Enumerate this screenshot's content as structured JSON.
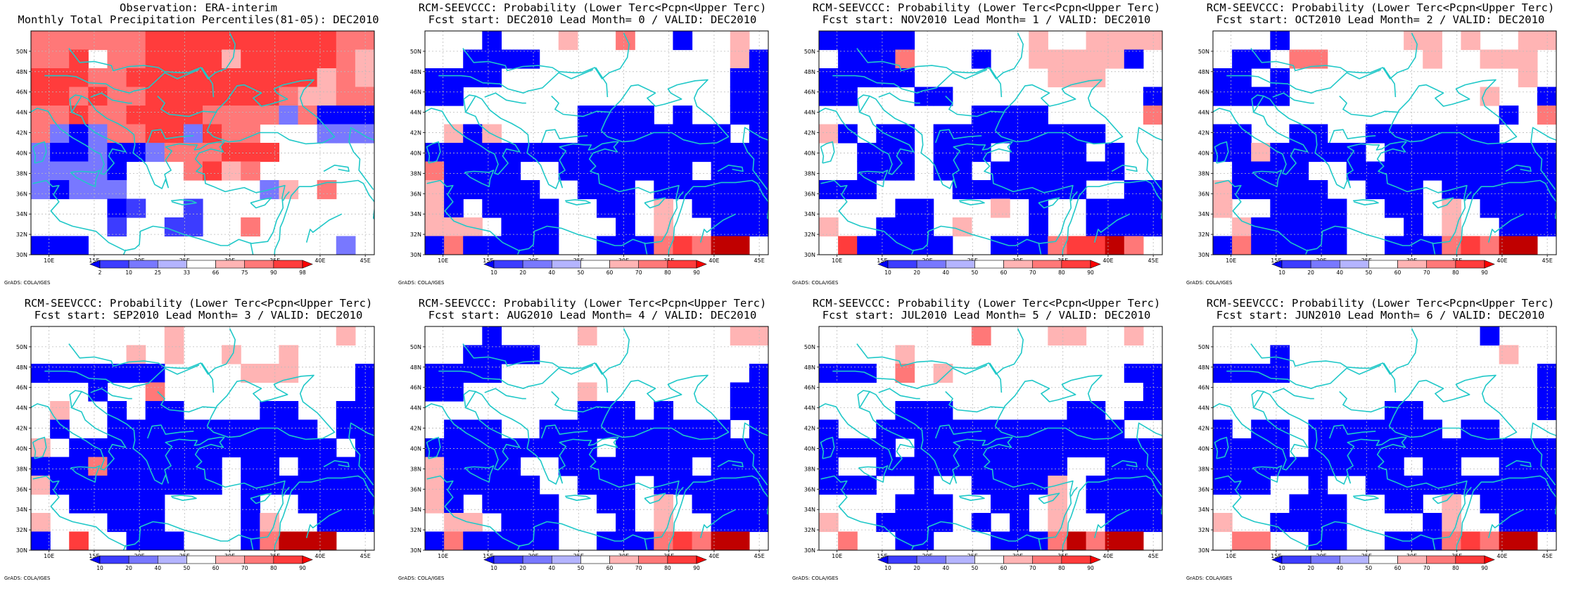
{
  "colors": {
    "blue1": "#0000ff",
    "blue2": "#3c3cff",
    "blue3": "#7878ff",
    "blue4": "#b4b4ff",
    "white": "#ffffff",
    "red1": "#ffb4b4",
    "red2": "#ff7878",
    "red3": "#ff3c3c",
    "red4": "#ff0000",
    "red5": "#c00000",
    "coast": "#20c8c8",
    "grid": "#bbbbbb"
  },
  "map": {
    "lon_range": [
      8,
      46
    ],
    "lat_range": [
      30,
      52
    ],
    "lon_ticks": [
      "10E",
      "15E",
      "20E",
      "25E",
      "30E",
      "35E",
      "40E",
      "45E"
    ],
    "lat_ticks": [
      "30N",
      "32N",
      "34N",
      "36N",
      "38N",
      "40N",
      "42N",
      "44N",
      "46N",
      "48N",
      "50N"
    ],
    "coastline_icon": "coastline-outline"
  },
  "panels": [
    {
      "title_line1": "Observation: ERA-interim",
      "title_line2": "Monthly Total Precipitation Percentiles(81-05): DEC2010",
      "credit": "GrADS: COLA/IGES",
      "legend": {
        "labels": [
          "2",
          "10",
          "25",
          "33",
          "66",
          "75",
          "90",
          "98"
        ],
        "colors": [
          "#0000ff",
          "#3c3cff",
          "#7878ff",
          "#b4b4ff",
          "#ffffff",
          "#ffb4b4",
          "#ff7878",
          "#ff3c3c",
          "#ff0000"
        ]
      },
      "grid_rows_top_to_bottom": [
        "RRRRRRQQQQQQQQQQRR",
        "RRQWRRQQQQPQQQQQRP",
        "QQQRRQQQQQQQQQQPRP",
        "QQRQRRQQQQQQQRPPRR",
        "RRQRRQQQQRRRRCRBBB",
        "RCBCRRQQCQRRWWWCCC",
        "CBBCBBCRRRQQQWWWWW",
        "CCCCBWWWRQPRWWWWWW",
        "CBCCCWWWWWWWCPWRWW",
        "WWWWBDWWDWWWWWWWWW",
        "WWWWDWWDDWWRWWWWWW",
        "BBBWWWWWWWWWWWWWCW"
      ]
    },
    {
      "title_line1": "RCM-SEEVCCC: Probability (Lower Terc<Pcpn<Upper Terc)",
      "title_line2": "Fcst start: DEC2010  Lead Month= 0 / VALID: DEC2010",
      "credit": "GrADS: COLA/IGES",
      "legend": {
        "labels": [
          "10",
          "20",
          "40",
          "50",
          "60",
          "70",
          "80",
          "90"
        ],
        "colors": [
          "#0000ff",
          "#3c3cff",
          "#7878ff",
          "#b4b4ff",
          "#ffffff",
          "#ffb4b4",
          "#ff7878",
          "#ff3c3c",
          "#ff0000"
        ]
      },
      "grid_rows_top_to_bottom": [
        "WWWBWWWPWWRWWBWWPW",
        "WWBBBBWWWWWWWWWWPB",
        "BBBBWWWWWWWWWWWWBB",
        "BBWWWWWWWWWWWWWWBB",
        "WWWWWWWWBBBBWBWWBB",
        "WPBPWWWWBBBBBBBBWB",
        "BBBBBBBBBBBBBBBBBB",
        "RBBBBWWBBBBBBBWBBB",
        "PBBBBBWWBBBWBBBBBB",
        "PBWBBBBWWBBWPWBBBB",
        "PPPWBBBWWWBWPWWBBB",
        "BRBBBBBWWBBBRQRKKW"
      ]
    },
    {
      "title_line1": "RCM-SEEVCCC: Probability (Lower Terc<Pcpn<Upper Terc)",
      "title_line2": "Fcst start: NOV2010  Lead Month= 1 / VALID: DEC2010",
      "credit": "GrADS: COLA/IGES",
      "legend": {
        "labels": [
          "10",
          "20",
          "40",
          "50",
          "60",
          "70",
          "80",
          "90"
        ],
        "colors": [
          "#0000ff",
          "#3c3cff",
          "#7878ff",
          "#b4b4ff",
          "#ffffff",
          "#ffb4b4",
          "#ff7878",
          "#ff3c3c",
          "#ff0000"
        ]
      },
      "grid_rows_top_to_bottom": [
        "BBBBBWWWWWWPWWPPPP",
        "WBBBRWWWBWWPPPPPBW",
        "BBBBBWWWWWWWPPPWWW",
        "BBWWWBBWWWWWWWWWWB",
        "WWWWWWWWBBBBWWWWWR",
        "PBWBBWBBBBBBBBBWWW",
        "WWBBBWBBBWBBBBWBWW",
        "WWBBBWBBWBBBBBBBWW",
        "BBBWWWWBBBBBBBWWBB",
        "WWWWBBWWWPWBWWBBBB",
        "PWWBBBWPWWWBWWBBBB",
        "WQBBBBBWWBBBRQQKRW"
      ]
    },
    {
      "title_line1": "RCM-SEEVCCC: Probability (Lower Terc<Pcpn<Upper Terc)",
      "title_line2": "Fcst start: OCT2010  Lead Month= 2 / VALID: DEC2010",
      "credit": "GrADS: COLA/IGES",
      "legend": {
        "labels": [
          "10",
          "20",
          "40",
          "50",
          "60",
          "70",
          "80",
          "90"
        ],
        "colors": [
          "#0000ff",
          "#3c3cff",
          "#7878ff",
          "#b4b4ff",
          "#ffffff",
          "#ffb4b4",
          "#ff7878",
          "#ff3c3c",
          "#ff0000"
        ]
      },
      "grid_rows_top_to_bottom": [
        "WWWBWWWWWWPPWPWWPP",
        "WBBWRRWWWWWPWWPPPW",
        "BBWBWWWWWWWWWWWWPW",
        "BBBBWWWWWWWWWWPWWB",
        "WWWWWWWWWWWWWWWBWR",
        "BBWWBBWWBBBBBBBWWW",
        "BBPBBBBBWBBBBBBBBB",
        "WBBBBWWBBBBBBBBBBB",
        "PBBBBBWWBBBWBBBBBB",
        "PWWBBBBWWBBWPWBBBB",
        "WPBBBBBWWWBWPWWBBB",
        "BRBBBBBWWBBBRQRKKW"
      ]
    },
    {
      "title_line1": "RCM-SEEVCCC: Probability (Lower Terc<Pcpn<Upper Terc)",
      "title_line2": "Fcst start: SEP2010  Lead Month= 3 / VALID: DEC2010",
      "credit": "GrADS: COLA/IGES",
      "legend": {
        "labels": [
          "10",
          "20",
          "40",
          "50",
          "60",
          "70",
          "80",
          "90"
        ],
        "colors": [
          "#0000ff",
          "#3c3cff",
          "#7878ff",
          "#b4b4ff",
          "#ffffff",
          "#ffb4b4",
          "#ff7878",
          "#ff3c3c",
          "#ff0000"
        ]
      },
      "grid_rows_top_to_bottom": [
        "WWWWWWWPWWWWWWWWPW",
        "WWWWWPWPWWPWWPWWWW",
        "BBBBBBBWWWWPPPWWWB",
        "WWWBWWRWWWWWWWWWWB",
        "WPWWBWBBWWWWBBWWBB",
        "WBWWBBBBBBBBBBBWBB",
        "PWBBBBBBBBBBBBBBWB",
        "BBBRBBBBBBWBBWBBBB",
        "PBBBBBBBBBWBBBBBBB",
        "WWBBBBBWWWWBWWBBBB",
        "PWWWBBBWWWWBPWWBBB",
        "BWQWWBBBWWWBRKKKWW"
      ]
    },
    {
      "title_line1": "RCM-SEEVCCC: Probability (Lower Terc<Pcpn<Upper Terc)",
      "title_line2": "Fcst start: AUG2010  Lead Month= 4 / VALID: DEC2010",
      "credit": "GrADS: COLA/IGES",
      "legend": {
        "labels": [
          "10",
          "20",
          "40",
          "50",
          "60",
          "70",
          "80",
          "90"
        ],
        "colors": [
          "#0000ff",
          "#3c3cff",
          "#7878ff",
          "#b4b4ff",
          "#ffffff",
          "#ffb4b4",
          "#ff7878",
          "#ff3c3c",
          "#ff0000"
        ]
      },
      "grid_rows_top_to_bottom": [
        "WWWBWWWWPWWWWWWWPP",
        "WWBBBBWWWWWWWWWWWW",
        "BBBBWWWWWWWWWWWWWB",
        "BBWWWWWWPWWWWWWWBB",
        "WWWWWWWWBBBWBWWWBB",
        "WBBBWWBBBBBBBBBBWB",
        "BBBBBBBBBWBBBBBBBB",
        "PBBBBWWBBBBBBBWBBB",
        "PBBBBBWWBBBWBBBBBB",
        "PBWBBBBWWBBWPWBBBB",
        "WPPWBBBWWWBWPWWBBB",
        "BRBBBBBWWBBBRQRKKW"
      ]
    },
    {
      "title_line1": "RCM-SEEVCCC: Probability (Lower Terc<Pcpn<Upper Terc)",
      "title_line2": "Fcst start: JUL2010  Lead Month= 5 / VALID: DEC2010",
      "credit": "GrADS: COLA/IGES",
      "legend": {
        "labels": [
          "10",
          "20",
          "40",
          "50",
          "60",
          "70",
          "80",
          "90"
        ],
        "colors": [
          "#0000ff",
          "#3c3cff",
          "#7878ff",
          "#b4b4ff",
          "#ffffff",
          "#ffb4b4",
          "#ff7878",
          "#ff3c3c",
          "#ff0000"
        ]
      },
      "grid_rows_top_to_bottom": [
        "WWWWWWWWRWWWPPWWPW",
        "WWWWPWWWWWWWWWWWWW",
        "BBBWRWPWWWWWWWWWBB",
        "WWWWWWWWWWWWWWWWWB",
        "WWWWBBBWWWWWWBBWBB",
        "BWWBBBBBBBBBBBBBWW",
        "BBBBWBBBBBBBBBBBBB",
        "BWWBBBBBBBBBBWWBBB",
        "BBBWWBWWBBBBPWBBBB",
        "WWWWBBBWWBBWPWBBBB",
        "PWWBBBBWBWBWPWWBBB",
        "WRWWBBWWWBBBRKRKKW"
      ]
    },
    {
      "title_line1": "RCM-SEEVCCC: Probability (Lower Terc<Pcpn<Upper Terc)",
      "title_line2": "Fcst start: JUN2010  Lead Month= 6 / VALID: DEC2010",
      "credit": "GrADS: COLA/IGES",
      "legend": {
        "labels": [
          "10",
          "20",
          "40",
          "50",
          "60",
          "70",
          "80",
          "90"
        ],
        "colors": [
          "#0000ff",
          "#3c3cff",
          "#7878ff",
          "#b4b4ff",
          "#ffffff",
          "#ffb4b4",
          "#ff7878",
          "#ff3c3c",
          "#ff0000"
        ]
      },
      "grid_rows_top_to_bottom": [
        "WWWWWWWWWWWWWWBWWW",
        "WWWBWWWWWWWWWWWPWW",
        "BBBBWWWWWWWWWWWWWB",
        "WWWWWWWWWWWWWWWWWB",
        "WWWWWWWWWBBWWWWWWB",
        "BWBBWBBBBBBBWBBWWW",
        "BBBBWBBBBBBBBBBBBB",
        "BBBBBBBBBBWBBWWBBB",
        "BBBWWBWWBBBBBBBBBB",
        "WWWWBBBWWBBWPWBBBB",
        "PWWBBBBWWWWBPWWBBB",
        "WRRWWBBWWBBBRQRKKW"
      ]
    }
  ]
}
